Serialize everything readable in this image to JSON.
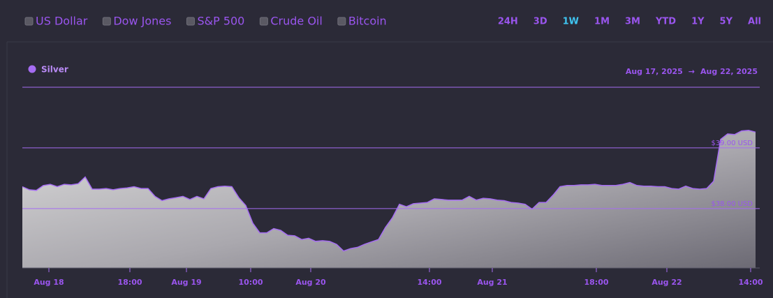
{
  "controls": {
    "assets": [
      "US Dollar",
      "Dow Jones",
      "S&P 500",
      "Crude Oil",
      "Bitcoin"
    ],
    "ranges": [
      "24H",
      "3D",
      "1W",
      "1M",
      "3M",
      "YTD",
      "1Y",
      "5Y",
      "All"
    ],
    "active_range": 2
  },
  "chart_data": {
    "type": "area",
    "range_start": "Aug 17, 2025",
    "range_separator": "→",
    "range_end": "Aug 22, 2025",
    "series": [
      {
        "name": "Silver",
        "color": "#a56cf2",
        "values": [
          38.36,
          38.31,
          38.3,
          38.38,
          38.4,
          38.36,
          38.4,
          38.39,
          38.41,
          38.52,
          38.32,
          38.32,
          38.33,
          38.31,
          38.33,
          38.34,
          38.36,
          38.33,
          38.33,
          38.2,
          38.13,
          38.16,
          38.18,
          38.2,
          38.15,
          38.2,
          38.16,
          38.33,
          38.36,
          38.37,
          38.36,
          38.18,
          38.05,
          37.76,
          37.6,
          37.6,
          37.67,
          37.64,
          37.56,
          37.55,
          37.49,
          37.51,
          37.46,
          37.47,
          37.46,
          37.41,
          37.3,
          37.34,
          37.36,
          37.41,
          37.45,
          37.49,
          37.69,
          37.85,
          38.07,
          38.03,
          38.08,
          38.09,
          38.1,
          38.16,
          38.15,
          38.14,
          38.14,
          38.14,
          38.2,
          38.14,
          38.17,
          38.16,
          38.14,
          38.13,
          38.1,
          38.09,
          38.07,
          37.99,
          38.1,
          38.1,
          38.22,
          38.36,
          38.38,
          38.38,
          38.39,
          38.39,
          38.4,
          38.38,
          38.38,
          38.38,
          38.4,
          38.43,
          38.38,
          38.37,
          38.37,
          38.36,
          38.36,
          38.33,
          38.32,
          38.37,
          38.33,
          38.32,
          38.33,
          38.45,
          39.14,
          39.23,
          39.22,
          39.28,
          39.29,
          39.26
        ]
      }
    ],
    "xlim": [
      0,
      105.6
    ],
    "xticks": [
      {
        "value": 3.8,
        "label": "Aug 18"
      },
      {
        "value": 15.4,
        "label": "18:00"
      },
      {
        "value": 23.5,
        "label": "Aug 19"
      },
      {
        "value": 32.7,
        "label": "10:00"
      },
      {
        "value": 41.3,
        "label": "Aug 20"
      },
      {
        "value": 58.3,
        "label": "14:00"
      },
      {
        "value": 67.3,
        "label": "Aug 21"
      },
      {
        "value": 82.2,
        "label": "18:00"
      },
      {
        "value": 92.3,
        "label": "Aug 22"
      },
      {
        "value": 104.3,
        "label": "14:00"
      }
    ],
    "ylim": [
      37.02,
      40.0
    ],
    "yticks": [
      {
        "value": 39,
        "label": "$39.00 USD"
      },
      {
        "value": 38,
        "label": "$38.00 USD"
      }
    ],
    "grid": true
  }
}
